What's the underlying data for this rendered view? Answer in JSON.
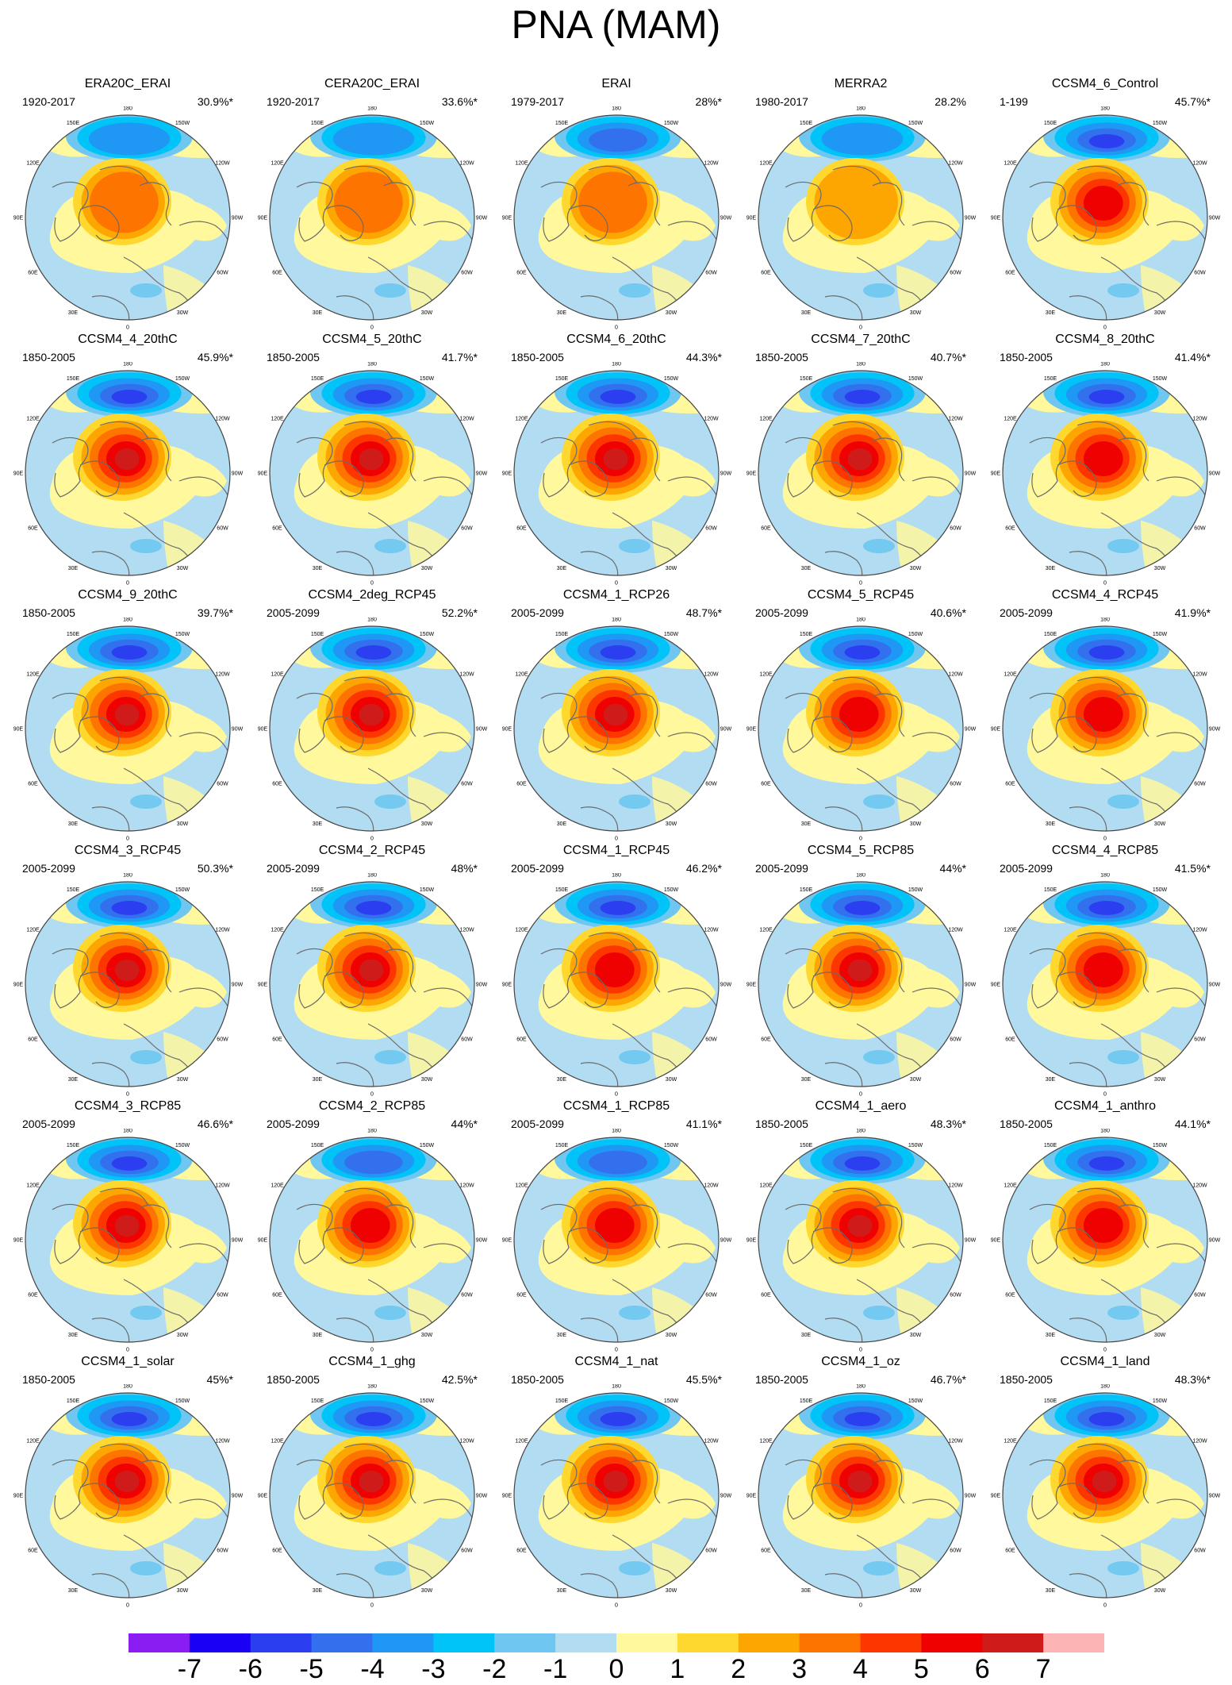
{
  "title": "PNA (MAM)",
  "panels": [
    {
      "name": "ERA20C_ERAI",
      "period": "1920-2017",
      "percent": "30.9%*",
      "intensity": 0.45
    },
    {
      "name": "CERA20C_ERAI",
      "period": "1920-2017",
      "percent": "33.6%*",
      "intensity": 0.45
    },
    {
      "name": "ERAI",
      "period": "1979-2017",
      "percent": "28%*",
      "intensity": 0.5
    },
    {
      "name": "MERRA2",
      "period": "1980-2017",
      "percent": "28.2%",
      "intensity": 0.35
    },
    {
      "name": "CCSM4_6_Control",
      "period": "1-199",
      "percent": "45.7%*",
      "intensity": 0.85
    },
    {
      "name": "CCSM4_4_20thC",
      "period": "1850-2005",
      "percent": "45.9%*",
      "intensity": 1.0
    },
    {
      "name": "CCSM4_5_20thC",
      "period": "1850-2005",
      "percent": "41.7%*",
      "intensity": 1.0
    },
    {
      "name": "CCSM4_6_20thC",
      "period": "1850-2005",
      "percent": "44.3%*",
      "intensity": 1.0
    },
    {
      "name": "CCSM4_7_20thC",
      "period": "1850-2005",
      "percent": "40.7%*",
      "intensity": 1.0
    },
    {
      "name": "CCSM4_8_20thC",
      "period": "1850-2005",
      "percent": "41.4%*",
      "intensity": 0.9
    },
    {
      "name": "CCSM4_9_20thC",
      "period": "1850-2005",
      "percent": "39.7%*",
      "intensity": 1.0
    },
    {
      "name": "CCSM4_2deg_RCP45",
      "period": "2005-2099",
      "percent": "52.2%*",
      "intensity": 1.0
    },
    {
      "name": "CCSM4_1_RCP26",
      "period": "2005-2099",
      "percent": "48.7%*",
      "intensity": 0.95
    },
    {
      "name": "CCSM4_5_RCP45",
      "period": "2005-2099",
      "percent": "40.6%*",
      "intensity": 0.9
    },
    {
      "name": "CCSM4_4_RCP45",
      "period": "2005-2099",
      "percent": "41.9%*",
      "intensity": 0.9
    },
    {
      "name": "CCSM4_3_RCP45",
      "period": "2005-2099",
      "percent": "50.3%*",
      "intensity": 0.95
    },
    {
      "name": "CCSM4_2_RCP45",
      "period": "2005-2099",
      "percent": "48%*",
      "intensity": 0.95
    },
    {
      "name": "CCSM4_1_RCP45",
      "period": "2005-2099",
      "percent": "46.2%*",
      "intensity": 0.9
    },
    {
      "name": "CCSM4_5_RCP85",
      "period": "2005-2099",
      "percent": "44%*",
      "intensity": 1.0
    },
    {
      "name": "CCSM4_4_RCP85",
      "period": "2005-2099",
      "percent": "41.5%*",
      "intensity": 0.9
    },
    {
      "name": "CCSM4_3_RCP85",
      "period": "2005-2099",
      "percent": "46.6%*",
      "intensity": 1.0
    },
    {
      "name": "CCSM4_2_RCP85",
      "period": "2005-2099",
      "percent": "44%*",
      "intensity": 0.75
    },
    {
      "name": "CCSM4_1_RCP85",
      "period": "2005-2099",
      "percent": "41.1%*",
      "intensity": 0.75
    },
    {
      "name": "CCSM4_1_aero",
      "period": "1850-2005",
      "percent": "48.3%*",
      "intensity": 0.95
    },
    {
      "name": "CCSM4_1_anthro",
      "period": "1850-2005",
      "percent": "44.1%*",
      "intensity": 0.9
    },
    {
      "name": "CCSM4_1_solar",
      "period": "1850-2005",
      "percent": "45%*",
      "intensity": 1.0
    },
    {
      "name": "CCSM4_1_ghg",
      "period": "1850-2005",
      "percent": "42.5%*",
      "intensity": 1.0
    },
    {
      "name": "CCSM4_1_nat",
      "period": "1850-2005",
      "percent": "45.5%*",
      "intensity": 1.0
    },
    {
      "name": "CCSM4_1_oz",
      "period": "1850-2005",
      "percent": "46.7%*",
      "intensity": 1.0
    },
    {
      "name": "CCSM4_1_land",
      "period": "1850-2005",
      "percent": "48.3%*",
      "intensity": 0.95
    }
  ],
  "longitude_labels": [
    {
      "label": "180",
      "angle": 180
    },
    {
      "label": "150W",
      "angle": 150
    },
    {
      "label": "150E",
      "angle": 210
    },
    {
      "label": "120W",
      "angle": 120
    },
    {
      "label": "120E",
      "angle": 240
    },
    {
      "label": "90W",
      "angle": 90
    },
    {
      "label": "90E",
      "angle": 270
    },
    {
      "label": "60W",
      "angle": 60
    },
    {
      "label": "60E",
      "angle": 300
    },
    {
      "label": "30W",
      "angle": 30
    },
    {
      "label": "30E",
      "angle": 330
    },
    {
      "label": "0",
      "angle": 0
    }
  ],
  "colorbar": {
    "colors": [
      "#8a1df1",
      "#1a00f5",
      "#2b3ff0",
      "#3270ee",
      "#1e97f5",
      "#00c3f7",
      "#6ec6f1",
      "#b1dcf2",
      "#fff89c",
      "#fed82e",
      "#fda500",
      "#fe7400",
      "#fd3600",
      "#ee0100",
      "#cf1b1a",
      "#fdb4b4"
    ],
    "labels": [
      "-7",
      "-6",
      "-5",
      "-4",
      "-3",
      "-2",
      "-1",
      "0",
      "1",
      "2",
      "3",
      "4",
      "5",
      "6",
      "7"
    ]
  }
}
